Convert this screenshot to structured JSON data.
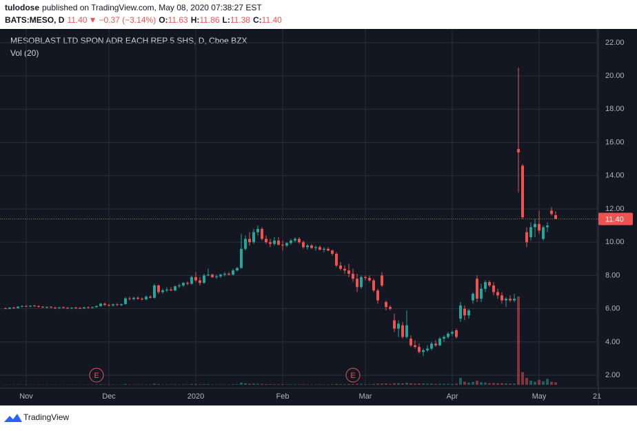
{
  "header": {
    "author": "tulodose",
    "published": "published on TradingView.com, May 08, 2020 07:38:27 EST"
  },
  "chart_data": {
    "type": "candlestick",
    "symbol": "BATS:MESO, D",
    "last": "11.40",
    "arrow": "▼",
    "change": "−0.37 (−3.14%)",
    "ohlc": [
      {
        "label": "O:",
        "value": "11.63"
      },
      {
        "label": "H:",
        "value": "11.86"
      },
      {
        "label": "L:",
        "value": "11.38"
      },
      {
        "label": "C:",
        "value": "11.40"
      }
    ],
    "title": "MESOBLAST LTD SPON ADR EACH REP 5 SHS, D, Cboe BZX",
    "volume_label": "Vol (20)",
    "up_color": "#26a69a",
    "down_color": "#ef5350",
    "grid": true,
    "xlim": [
      -1.33,
      143.33
    ],
    "xticks": [
      {
        "value": 5,
        "label": "Nov"
      },
      {
        "value": 25,
        "label": "Dec"
      },
      {
        "value": 46,
        "label": "2020"
      },
      {
        "value": 67,
        "label": "Feb"
      },
      {
        "value": 87,
        "label": "Mar"
      },
      {
        "value": 108,
        "label": "Apr"
      },
      {
        "value": 129,
        "label": "May"
      },
      {
        "value": 143,
        "label": "21"
      }
    ],
    "ylim": [
      1.34,
      22.7
    ],
    "yticks": [
      {
        "value": 2,
        "label": "2.00"
      },
      {
        "value": 4,
        "label": "4.00"
      },
      {
        "value": 6,
        "label": "6.00"
      },
      {
        "value": 8,
        "label": "8.00"
      },
      {
        "value": 10,
        "label": "10.00"
      },
      {
        "value": 12,
        "label": "12.00"
      },
      {
        "value": 14,
        "label": "14.00"
      },
      {
        "value": 16,
        "label": "16.00"
      },
      {
        "value": 18,
        "label": "18.00"
      },
      {
        "value": 20,
        "label": "20.00"
      },
      {
        "value": 22,
        "label": "22.00"
      }
    ],
    "last_price": {
      "value": 11.4,
      "label": "11.40"
    },
    "events": [
      {
        "x": 22,
        "label": "E"
      },
      {
        "x": 84,
        "label": "E"
      }
    ],
    "bars": [
      {
        "o": 6.02,
        "h": 6.08,
        "l": 5.98,
        "c": 6.0,
        "v": 30
      },
      {
        "o": 6.0,
        "h": 6.1,
        "l": 5.96,
        "c": 6.06,
        "v": 25
      },
      {
        "o": 6.06,
        "h": 6.12,
        "l": 6.0,
        "c": 6.04,
        "v": 28
      },
      {
        "o": 6.04,
        "h": 6.15,
        "l": 6.0,
        "c": 6.12,
        "v": 35
      },
      {
        "o": 6.12,
        "h": 6.2,
        "l": 6.08,
        "c": 6.16,
        "v": 30
      },
      {
        "o": 6.16,
        "h": 6.22,
        "l": 6.1,
        "c": 6.14,
        "v": 26
      },
      {
        "o": 6.14,
        "h": 6.2,
        "l": 6.08,
        "c": 6.18,
        "v": 30
      },
      {
        "o": 6.18,
        "h": 6.24,
        "l": 6.12,
        "c": 6.15,
        "v": 28
      },
      {
        "o": 6.15,
        "h": 6.2,
        "l": 6.08,
        "c": 6.12,
        "v": 25
      },
      {
        "o": 6.12,
        "h": 6.16,
        "l": 6.04,
        "c": 6.08,
        "v": 24
      },
      {
        "o": 6.08,
        "h": 6.14,
        "l": 6.02,
        "c": 6.1,
        "v": 26
      },
      {
        "o": 6.1,
        "h": 6.16,
        "l": 6.04,
        "c": 6.06,
        "v": 22
      },
      {
        "o": 6.06,
        "h": 6.12,
        "l": 6.0,
        "c": 6.04,
        "v": 24
      },
      {
        "o": 6.04,
        "h": 6.1,
        "l": 5.98,
        "c": 6.08,
        "v": 28
      },
      {
        "o": 6.08,
        "h": 6.14,
        "l": 6.02,
        "c": 6.05,
        "v": 22
      },
      {
        "o": 6.05,
        "h": 6.1,
        "l": 6.0,
        "c": 6.02,
        "v": 20
      },
      {
        "o": 6.02,
        "h": 6.08,
        "l": 5.96,
        "c": 6.06,
        "v": 26
      },
      {
        "o": 6.06,
        "h": 6.12,
        "l": 6.0,
        "c": 6.04,
        "v": 24
      },
      {
        "o": 6.04,
        "h": 6.1,
        "l": 5.98,
        "c": 6.02,
        "v": 22
      },
      {
        "o": 6.02,
        "h": 6.1,
        "l": 5.98,
        "c": 6.08,
        "v": 30
      },
      {
        "o": 6.08,
        "h": 6.14,
        "l": 6.02,
        "c": 6.06,
        "v": 28
      },
      {
        "o": 6.06,
        "h": 6.12,
        "l": 6.0,
        "c": 6.1,
        "v": 32
      },
      {
        "o": 6.1,
        "h": 6.2,
        "l": 6.06,
        "c": 6.16,
        "v": 40
      },
      {
        "o": 6.16,
        "h": 6.35,
        "l": 6.1,
        "c": 6.3,
        "v": 60
      },
      {
        "o": 6.3,
        "h": 6.36,
        "l": 6.18,
        "c": 6.22,
        "v": 35
      },
      {
        "o": 6.22,
        "h": 6.3,
        "l": 6.14,
        "c": 6.2,
        "v": 30
      },
      {
        "o": 6.2,
        "h": 6.3,
        "l": 6.12,
        "c": 6.26,
        "v": 34
      },
      {
        "o": 6.26,
        "h": 6.34,
        "l": 6.18,
        "c": 6.22,
        "v": 28
      },
      {
        "o": 6.22,
        "h": 6.3,
        "l": 6.16,
        "c": 6.28,
        "v": 32
      },
      {
        "o": 6.28,
        "h": 6.7,
        "l": 6.24,
        "c": 6.62,
        "v": 80
      },
      {
        "o": 6.62,
        "h": 6.72,
        "l": 6.5,
        "c": 6.58,
        "v": 40
      },
      {
        "o": 6.58,
        "h": 6.7,
        "l": 6.5,
        "c": 6.66,
        "v": 38
      },
      {
        "o": 6.66,
        "h": 6.74,
        "l": 6.54,
        "c": 6.6,
        "v": 34
      },
      {
        "o": 6.6,
        "h": 6.68,
        "l": 6.5,
        "c": 6.56,
        "v": 30
      },
      {
        "o": 6.56,
        "h": 6.8,
        "l": 6.5,
        "c": 6.72,
        "v": 45
      },
      {
        "o": 6.72,
        "h": 6.8,
        "l": 6.62,
        "c": 6.66,
        "v": 32
      },
      {
        "o": 6.66,
        "h": 7.5,
        "l": 6.6,
        "c": 7.4,
        "v": 110
      },
      {
        "o": 7.4,
        "h": 7.45,
        "l": 6.9,
        "c": 7.0,
        "v": 60
      },
      {
        "o": 7.0,
        "h": 7.2,
        "l": 6.9,
        "c": 7.1,
        "v": 40
      },
      {
        "o": 7.1,
        "h": 7.3,
        "l": 7.0,
        "c": 7.15,
        "v": 38
      },
      {
        "o": 7.15,
        "h": 7.3,
        "l": 7.05,
        "c": 7.1,
        "v": 35
      },
      {
        "o": 7.1,
        "h": 7.4,
        "l": 7.05,
        "c": 7.35,
        "v": 50
      },
      {
        "o": 7.35,
        "h": 7.5,
        "l": 7.25,
        "c": 7.4,
        "v": 45
      },
      {
        "o": 7.4,
        "h": 7.6,
        "l": 7.3,
        "c": 7.55,
        "v": 48
      },
      {
        "o": 7.55,
        "h": 7.65,
        "l": 7.4,
        "c": 7.5,
        "v": 40
      },
      {
        "o": 7.5,
        "h": 8.0,
        "l": 7.45,
        "c": 7.9,
        "v": 80
      },
      {
        "o": 7.9,
        "h": 8.2,
        "l": 7.6,
        "c": 7.7,
        "v": 70
      },
      {
        "o": 7.7,
        "h": 7.9,
        "l": 7.4,
        "c": 7.55,
        "v": 55
      },
      {
        "o": 7.55,
        "h": 8.1,
        "l": 7.5,
        "c": 8.0,
        "v": 65
      },
      {
        "o": 8.0,
        "h": 8.4,
        "l": 7.95,
        "c": 8.05,
        "v": 60
      },
      {
        "o": 8.05,
        "h": 8.1,
        "l": 7.85,
        "c": 7.9,
        "v": 40
      },
      {
        "o": 7.9,
        "h": 8.05,
        "l": 7.8,
        "c": 7.95,
        "v": 35
      },
      {
        "o": 7.95,
        "h": 8.1,
        "l": 7.85,
        "c": 8.05,
        "v": 38
      },
      {
        "o": 8.05,
        "h": 8.2,
        "l": 7.95,
        "c": 8.1,
        "v": 40
      },
      {
        "o": 8.1,
        "h": 8.2,
        "l": 8.0,
        "c": 8.05,
        "v": 34
      },
      {
        "o": 8.05,
        "h": 8.4,
        "l": 8.0,
        "c": 8.3,
        "v": 55
      },
      {
        "o": 8.3,
        "h": 8.5,
        "l": 8.25,
        "c": 8.45,
        "v": 60
      },
      {
        "o": 8.45,
        "h": 10.5,
        "l": 8.4,
        "c": 9.6,
        "v": 220
      },
      {
        "o": 9.6,
        "h": 10.4,
        "l": 9.5,
        "c": 10.2,
        "v": 150
      },
      {
        "o": 10.2,
        "h": 10.6,
        "l": 9.8,
        "c": 10.0,
        "v": 110
      },
      {
        "o": 10.0,
        "h": 10.8,
        "l": 9.9,
        "c": 10.6,
        "v": 120
      },
      {
        "o": 10.6,
        "h": 11.0,
        "l": 10.4,
        "c": 10.8,
        "v": 100
      },
      {
        "o": 10.8,
        "h": 10.9,
        "l": 10.1,
        "c": 10.2,
        "v": 90
      },
      {
        "o": 10.2,
        "h": 10.4,
        "l": 9.9,
        "c": 10.0,
        "v": 70
      },
      {
        "o": 10.0,
        "h": 10.2,
        "l": 9.7,
        "c": 9.9,
        "v": 65
      },
      {
        "o": 9.9,
        "h": 10.3,
        "l": 9.8,
        "c": 10.1,
        "v": 60
      },
      {
        "o": 10.1,
        "h": 10.3,
        "l": 9.8,
        "c": 9.85,
        "v": 55
      },
      {
        "o": 9.85,
        "h": 10.1,
        "l": 9.5,
        "c": 9.8,
        "v": 60
      },
      {
        "o": 9.8,
        "h": 10.0,
        "l": 9.7,
        "c": 9.95,
        "v": 45
      },
      {
        "o": 9.95,
        "h": 10.2,
        "l": 9.85,
        "c": 10.1,
        "v": 50
      },
      {
        "o": 10.1,
        "h": 10.3,
        "l": 10.0,
        "c": 10.2,
        "v": 48
      },
      {
        "o": 10.2,
        "h": 10.3,
        "l": 9.9,
        "c": 10.0,
        "v": 45
      },
      {
        "o": 10.0,
        "h": 10.1,
        "l": 9.6,
        "c": 9.7,
        "v": 55
      },
      {
        "o": 9.7,
        "h": 9.9,
        "l": 9.55,
        "c": 9.8,
        "v": 40
      },
      {
        "o": 9.8,
        "h": 9.9,
        "l": 9.6,
        "c": 9.65,
        "v": 38
      },
      {
        "o": 9.65,
        "h": 9.8,
        "l": 9.5,
        "c": 9.7,
        "v": 36
      },
      {
        "o": 9.7,
        "h": 9.8,
        "l": 9.5,
        "c": 9.55,
        "v": 40
      },
      {
        "o": 9.55,
        "h": 9.7,
        "l": 9.4,
        "c": 9.6,
        "v": 38
      },
      {
        "o": 9.6,
        "h": 9.7,
        "l": 9.45,
        "c": 9.5,
        "v": 40
      },
      {
        "o": 9.5,
        "h": 9.55,
        "l": 9.2,
        "c": 9.3,
        "v": 50
      },
      {
        "o": 9.3,
        "h": 9.4,
        "l": 8.5,
        "c": 8.6,
        "v": 90
      },
      {
        "o": 8.6,
        "h": 8.8,
        "l": 8.3,
        "c": 8.4,
        "v": 70
      },
      {
        "o": 8.4,
        "h": 8.6,
        "l": 8.1,
        "c": 8.3,
        "v": 60
      },
      {
        "o": 8.3,
        "h": 8.7,
        "l": 7.9,
        "c": 8.1,
        "v": 80
      },
      {
        "o": 8.1,
        "h": 8.4,
        "l": 7.6,
        "c": 7.8,
        "v": 75
      },
      {
        "o": 7.8,
        "h": 8.1,
        "l": 7.0,
        "c": 7.3,
        "v": 100
      },
      {
        "o": 7.3,
        "h": 8.0,
        "l": 7.2,
        "c": 7.9,
        "v": 90
      },
      {
        "o": 7.9,
        "h": 8.0,
        "l": 7.7,
        "c": 7.85,
        "v": 50
      },
      {
        "o": 7.85,
        "h": 8.0,
        "l": 7.6,
        "c": 7.7,
        "v": 55
      },
      {
        "o": 7.7,
        "h": 7.8,
        "l": 7.0,
        "c": 7.1,
        "v": 80
      },
      {
        "o": 7.1,
        "h": 7.2,
        "l": 6.3,
        "c": 6.5,
        "v": 110
      },
      {
        "o": 8.0,
        "h": 8.2,
        "l": 7.3,
        "c": 7.4,
        "v": 130
      },
      {
        "o": 6.4,
        "h": 6.5,
        "l": 5.9,
        "c": 6.1,
        "v": 140
      },
      {
        "o": 6.1,
        "h": 6.2,
        "l": 5.9,
        "c": 6.0,
        "v": 90
      },
      {
        "o": 5.3,
        "h": 5.7,
        "l": 4.6,
        "c": 4.8,
        "v": 170
      },
      {
        "o": 4.8,
        "h": 5.3,
        "l": 4.3,
        "c": 5.1,
        "v": 160
      },
      {
        "o": 5.0,
        "h": 5.2,
        "l": 4.2,
        "c": 4.3,
        "v": 150
      },
      {
        "o": 4.3,
        "h": 5.9,
        "l": 4.2,
        "c": 5.0,
        "v": 200
      },
      {
        "o": 4.2,
        "h": 4.4,
        "l": 3.7,
        "c": 3.8,
        "v": 150
      },
      {
        "o": 3.8,
        "h": 4.1,
        "l": 3.6,
        "c": 3.7,
        "v": 120
      },
      {
        "o": 3.7,
        "h": 3.9,
        "l": 3.3,
        "c": 3.4,
        "v": 130
      },
      {
        "o": 3.4,
        "h": 3.6,
        "l": 3.15,
        "c": 3.5,
        "v": 140
      },
      {
        "o": 3.5,
        "h": 3.8,
        "l": 3.4,
        "c": 3.6,
        "v": 110
      },
      {
        "o": 3.6,
        "h": 4.0,
        "l": 3.5,
        "c": 3.9,
        "v": 120
      },
      {
        "o": 3.9,
        "h": 4.1,
        "l": 3.7,
        "c": 3.8,
        "v": 90
      },
      {
        "o": 3.8,
        "h": 4.3,
        "l": 3.75,
        "c": 4.2,
        "v": 110
      },
      {
        "o": 4.2,
        "h": 4.4,
        "l": 4.0,
        "c": 4.3,
        "v": 100
      },
      {
        "o": 4.3,
        "h": 4.6,
        "l": 4.2,
        "c": 4.5,
        "v": 100
      },
      {
        "o": 4.5,
        "h": 4.7,
        "l": 4.35,
        "c": 4.6,
        "v": 90
      },
      {
        "o": 4.7,
        "h": 4.8,
        "l": 4.2,
        "c": 4.3,
        "v": 110
      },
      {
        "o": 5.4,
        "h": 6.4,
        "l": 5.2,
        "c": 6.2,
        "v": 700
      },
      {
        "o": 6.0,
        "h": 6.2,
        "l": 5.3,
        "c": 5.6,
        "v": 320
      },
      {
        "o": 5.6,
        "h": 6.0,
        "l": 5.4,
        "c": 5.9,
        "v": 220
      },
      {
        "o": 6.5,
        "h": 7.0,
        "l": 6.3,
        "c": 6.9,
        "v": 300
      },
      {
        "o": 7.8,
        "h": 8.0,
        "l": 6.4,
        "c": 6.6,
        "v": 420
      },
      {
        "o": 6.6,
        "h": 7.5,
        "l": 6.4,
        "c": 7.2,
        "v": 260
      },
      {
        "o": 7.2,
        "h": 7.7,
        "l": 7.0,
        "c": 7.6,
        "v": 220
      },
      {
        "o": 7.6,
        "h": 7.7,
        "l": 7.3,
        "c": 7.4,
        "v": 160
      },
      {
        "o": 7.4,
        "h": 7.6,
        "l": 6.8,
        "c": 7.0,
        "v": 180
      },
      {
        "o": 7.0,
        "h": 7.2,
        "l": 6.6,
        "c": 6.8,
        "v": 150
      },
      {
        "o": 6.8,
        "h": 7.0,
        "l": 6.3,
        "c": 6.5,
        "v": 160
      },
      {
        "o": 6.5,
        "h": 6.7,
        "l": 6.1,
        "c": 6.6,
        "v": 140
      },
      {
        "o": 6.6,
        "h": 6.8,
        "l": 6.4,
        "c": 6.5,
        "v": 120
      },
      {
        "o": 6.5,
        "h": 6.9,
        "l": 6.4,
        "c": 6.6,
        "v": 130
      },
      {
        "o": 15.6,
        "h": 20.5,
        "l": 13.0,
        "c": 15.4,
        "v": 9000
      },
      {
        "o": 14.6,
        "h": 14.7,
        "l": 11.4,
        "c": 11.5,
        "v": 1300
      },
      {
        "o": 10.6,
        "h": 10.9,
        "l": 9.7,
        "c": 10.0,
        "v": 700
      },
      {
        "o": 10.3,
        "h": 11.2,
        "l": 10.1,
        "c": 10.9,
        "v": 420
      },
      {
        "o": 10.9,
        "h": 11.4,
        "l": 10.3,
        "c": 11.1,
        "v": 320
      },
      {
        "o": 11.1,
        "h": 11.9,
        "l": 10.5,
        "c": 10.7,
        "v": 500
      },
      {
        "o": 10.2,
        "h": 11.0,
        "l": 10.1,
        "c": 10.9,
        "v": 360
      },
      {
        "o": 10.9,
        "h": 11.2,
        "l": 10.6,
        "c": 11.0,
        "v": 600
      },
      {
        "o": 11.9,
        "h": 12.1,
        "l": 11.6,
        "c": 11.7,
        "v": 320
      },
      {
        "o": 11.63,
        "h": 11.86,
        "l": 11.38,
        "c": 11.4,
        "v": 250
      }
    ]
  },
  "footer": {
    "brand": "TradingView"
  }
}
